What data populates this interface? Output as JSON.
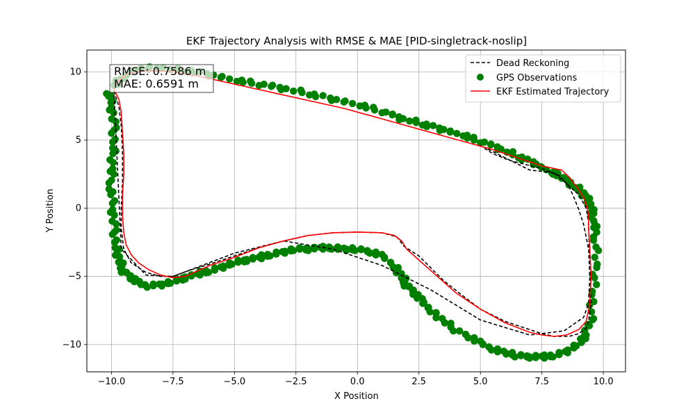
{
  "chart_data": {
    "type": "line",
    "title": "EKF Trajectory Analysis with RMSE & MAE [PID-singletrack-noslip]",
    "xlabel": "X Position",
    "ylabel": "Y Position",
    "xlim": [
      -11.0,
      10.9
    ],
    "ylim": [
      -12.0,
      11.6
    ],
    "xticks": [
      -10.0,
      -7.5,
      -5.0,
      -2.5,
      0.0,
      2.5,
      5.0,
      7.5,
      10.0
    ],
    "xtick_labels": [
      "−10.0",
      "−7.5",
      "−5.0",
      "−2.5",
      "0.0",
      "2.5",
      "5.0",
      "7.5",
      "10.0"
    ],
    "yticks": [
      -10,
      -5,
      0,
      5,
      10
    ],
    "ytick_labels": [
      "−10",
      "−5",
      "0",
      "5",
      "10"
    ],
    "grid": true,
    "legend_position": "top-right",
    "annotations": {
      "rmse": "RMSE: 0.7586 m",
      "mae": "MAE: 0.6591 m"
    },
    "series": [
      {
        "name": "Dead Reckoning",
        "style": "dashed",
        "color": "#000000",
        "x": [
          -9.9,
          -9.7,
          -9.6,
          -9.55,
          -9.55,
          -9.6,
          -9.6,
          -9.5,
          -9.2,
          -8.6,
          -8.0,
          -7.5,
          -6.9,
          -6.0,
          -5.0,
          -4.0,
          -3.0,
          -2.0,
          -1.0,
          0.0,
          1.0,
          1.6,
          1.9,
          2.5,
          3.0,
          3.5,
          4.2,
          5.0,
          6.0,
          7.0,
          7.5,
          8.0,
          8.6,
          9.0,
          9.3,
          9.4,
          9.5,
          9.45,
          9.4,
          9.2,
          9.0,
          8.8,
          8.6,
          8.2,
          7.5,
          6.2,
          5.5,
          5.0,
          7.0,
          8.0,
          9.0,
          9.3,
          9.4,
          9.45,
          9.4,
          9.2,
          8.4,
          7.0,
          5.0,
          3.0,
          1.0,
          -1.0,
          -3.0,
          -5.0,
          -7.5,
          -8.6,
          -9.6,
          -9.9
        ],
        "y": [
          8.6,
          7.5,
          6.0,
          4.0,
          2.0,
          0.0,
          -1.5,
          -3.0,
          -4.0,
          -4.7,
          -5.0,
          -5.0,
          -4.6,
          -4.1,
          -3.5,
          -2.9,
          -2.4,
          -2.0,
          -1.8,
          -1.75,
          -1.8,
          -2.1,
          -2.8,
          -3.5,
          -4.4,
          -5.3,
          -6.3,
          -7.4,
          -8.3,
          -8.9,
          -9.2,
          -9.4,
          -9.4,
          -9.2,
          -8.8,
          -8.3,
          -7.0,
          -5.0,
          -3.0,
          -1.2,
          -0.1,
          0.8,
          1.6,
          2.4,
          2.9,
          3.5,
          4.0,
          4.6,
          2.8,
          2.6,
          1.0,
          0.0,
          -1.0,
          -5.0,
          -7.0,
          -8.0,
          -9.0,
          -9.3,
          -8.2,
          -6.0,
          -4.2,
          -3.0,
          -2.4,
          -3.3,
          -5.0,
          -4.9,
          -3.0,
          8.6
        ]
      },
      {
        "name": "GPS Observations",
        "style": "scatter",
        "color": "#008000",
        "x": [
          -10.1,
          -10.0,
          -9.9,
          -9.9,
          -10.0,
          -10.0,
          -9.95,
          -9.9,
          -9.8,
          -9.7,
          -9.5,
          -9.2,
          -8.9,
          -8.5,
          -8.0,
          -7.5,
          -7.0,
          -6.5,
          -6.0,
          -5.5,
          -5.0,
          -4.5,
          -4.0,
          -3.5,
          -3.0,
          -2.5,
          -2.0,
          -1.5,
          -1.0,
          -0.5,
          0.0,
          0.5,
          1.0,
          1.5,
          1.8,
          2.0,
          2.3,
          2.6,
          3.0,
          3.5,
          4.0,
          4.5,
          5.0,
          5.5,
          6.0,
          6.5,
          7.0,
          7.5,
          8.0,
          8.5,
          9.0,
          9.3,
          9.5,
          9.6,
          9.7,
          9.7,
          9.6,
          9.5,
          9.4,
          9.1,
          8.7,
          8.3,
          7.8,
          7.2,
          6.5,
          5.8,
          5.0,
          4.2,
          3.4,
          2.6,
          1.8,
          1.0,
          0.0,
          -1.0,
          -2.0,
          -3.0,
          -4.0,
          -5.0,
          -6.0,
          -7.0,
          -8.0,
          -9.0,
          -9.6,
          -9.9
        ],
        "y": [
          8.5,
          7.5,
          6.0,
          4.5,
          3.0,
          1.5,
          0.0,
          -1.5,
          -2.8,
          -3.8,
          -4.6,
          -5.1,
          -5.5,
          -5.7,
          -5.6,
          -5.4,
          -5.1,
          -4.8,
          -4.6,
          -4.3,
          -4.0,
          -3.8,
          -3.6,
          -3.4,
          -3.2,
          -3.0,
          -3.0,
          -2.9,
          -2.9,
          -3.0,
          -3.0,
          -3.2,
          -3.5,
          -4.2,
          -5.0,
          -5.6,
          -6.2,
          -6.8,
          -7.5,
          -8.3,
          -8.9,
          -9.4,
          -9.9,
          -10.3,
          -10.6,
          -10.8,
          -10.9,
          -10.9,
          -10.8,
          -10.5,
          -10.0,
          -9.2,
          -8.0,
          -6.0,
          -4.0,
          -2.0,
          -0.8,
          0.0,
          0.6,
          1.2,
          1.8,
          2.3,
          2.7,
          3.3,
          3.8,
          4.4,
          4.9,
          5.4,
          5.8,
          6.2,
          6.6,
          7.1,
          7.6,
          8.0,
          8.4,
          8.8,
          9.1,
          9.4,
          9.8,
          10.1,
          10.3,
          10.2,
          9.6,
          8.8
        ]
      },
      {
        "name": "EKF Estimated Trajectory",
        "style": "solid",
        "color": "#ff0000",
        "x": [
          -9.9,
          -9.7,
          -9.6,
          -9.55,
          -9.5,
          -9.5,
          -9.55,
          -9.55,
          -9.5,
          -9.4,
          -9.2,
          -8.9,
          -8.5,
          -8.0,
          -7.5,
          -7.0,
          -6.5,
          -6.0,
          -5.0,
          -4.0,
          -3.0,
          -2.0,
          -1.0,
          0.0,
          1.0,
          1.5,
          1.8,
          2.0,
          2.5,
          3.0,
          3.5,
          4.0,
          5.0,
          6.0,
          7.0,
          7.5,
          8.0,
          8.5,
          9.0,
          9.3,
          9.45,
          9.5,
          9.45,
          9.4,
          9.4,
          9.35,
          9.2,
          8.9,
          8.6,
          8.3,
          7.5,
          6.5,
          5.5,
          4.5,
          3.5,
          2.5,
          1.5,
          0.5,
          -0.5,
          -1.5,
          -2.5,
          -3.5,
          -4.5,
          -5.5,
          -6.5,
          -7.5,
          -8.5,
          -9.3,
          -9.7,
          -9.9
        ],
        "y": [
          8.7,
          8.0,
          7.0,
          5.5,
          4.0,
          2.5,
          1.0,
          -0.5,
          -1.8,
          -2.7,
          -3.4,
          -4.0,
          -4.5,
          -4.9,
          -5.1,
          -5.0,
          -4.6,
          -4.2,
          -3.6,
          -2.9,
          -2.4,
          -2.0,
          -1.8,
          -1.75,
          -1.8,
          -2.0,
          -2.4,
          -3.0,
          -3.8,
          -4.6,
          -5.4,
          -6.2,
          -7.4,
          -8.4,
          -9.1,
          -9.3,
          -9.4,
          -9.3,
          -8.9,
          -8.3,
          -7.0,
          -5.0,
          -3.0,
          -1.5,
          -0.6,
          0.0,
          0.8,
          1.6,
          2.3,
          2.8,
          3.1,
          3.7,
          4.3,
          4.8,
          5.3,
          5.8,
          6.3,
          6.8,
          7.3,
          7.7,
          8.1,
          8.5,
          8.9,
          9.3,
          9.7,
          10.0,
          10.1,
          9.9,
          9.4,
          8.7
        ]
      }
    ]
  }
}
